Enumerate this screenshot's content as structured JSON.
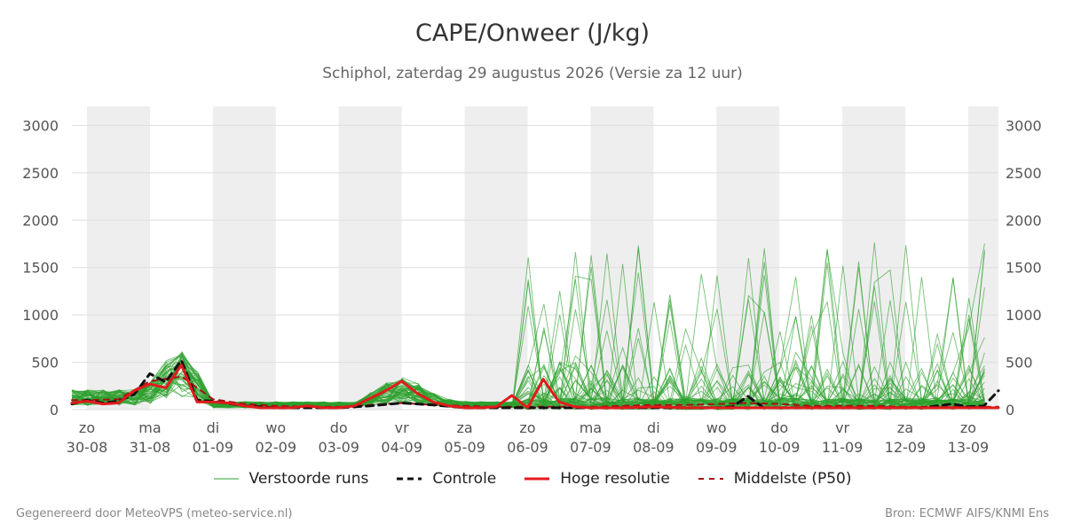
{
  "header": {
    "title": "CAPE/Onweer (J/kg)",
    "subtitle": "Schiphol, zaterdag 29 augustus 2026 (Versie za 12 uur)"
  },
  "footer": {
    "left": "Gegenereerd door MeteoVPS (meteo-service.nl)",
    "right": "Bron: ECMWF AIFS/KNMI Ens"
  },
  "colors": {
    "members": "#2ca02c",
    "control": "#111111",
    "highres": "#e31a1c",
    "median": "#a50f15",
    "weekend_band": "#eeeeee",
    "grid": "#dddddd"
  },
  "legend": [
    {
      "label": "Verstoorde runs",
      "style": "members"
    },
    {
      "label": "Controle",
      "style": "control"
    },
    {
      "label": "Hoge resolutie",
      "style": "highres"
    },
    {
      "label": "Middelste (P50)",
      "style": "median"
    }
  ],
  "chart_data": {
    "type": "line",
    "title": "CAPE/Onweer (J/kg)",
    "ylim": [
      0,
      3200
    ],
    "xlim_days": [
      -0.24,
      14.48
    ],
    "y_ticks": [
      0,
      500,
      1000,
      1500,
      2000,
      2500,
      3000
    ],
    "y_axes": [
      "left",
      "right"
    ],
    "grid": true,
    "legend_position": "bottom",
    "x_ticks": [
      {
        "day": 0,
        "weekday": "zo",
        "date": "30-08"
      },
      {
        "day": 1,
        "weekday": "ma",
        "date": "31-08"
      },
      {
        "day": 2,
        "weekday": "di",
        "date": "01-09"
      },
      {
        "day": 3,
        "weekday": "wo",
        "date": "02-09"
      },
      {
        "day": 4,
        "weekday": "do",
        "date": "03-09"
      },
      {
        "day": 5,
        "weekday": "vr",
        "date": "04-09"
      },
      {
        "day": 6,
        "weekday": "za",
        "date": "05-09"
      },
      {
        "day": 7,
        "weekday": "zo",
        "date": "06-09"
      },
      {
        "day": 8,
        "weekday": "ma",
        "date": "07-09"
      },
      {
        "day": 9,
        "weekday": "di",
        "date": "08-09"
      },
      {
        "day": 10,
        "weekday": "wo",
        "date": "09-09"
      },
      {
        "day": 11,
        "weekday": "do",
        "date": "10-09"
      },
      {
        "day": 12,
        "weekday": "vr",
        "date": "11-09"
      },
      {
        "day": 13,
        "weekday": "za",
        "date": "12-09"
      },
      {
        "day": 14,
        "weekday": "zo",
        "date": "13-09"
      }
    ],
    "shaded_bands_days": [
      [
        0,
        1
      ],
      [
        2,
        3
      ],
      [
        4,
        5
      ],
      [
        6,
        7
      ],
      [
        8,
        9
      ],
      [
        10,
        11
      ],
      [
        12,
        13
      ],
      [
        14,
        15
      ]
    ],
    "series": [
      {
        "name": "Hoge resolutie",
        "style": "highres",
        "x": [
          -0.24,
          -0.1,
          0,
          0.25,
          0.5,
          0.75,
          1,
          1.25,
          1.5,
          1.75,
          2,
          2.25,
          2.5,
          2.75,
          3,
          3.25,
          3.5,
          3.75,
          4,
          4.25,
          4.5,
          4.75,
          5,
          5.25,
          5.5,
          5.75,
          6,
          6.25,
          6.5,
          6.75,
          7,
          7.25,
          7.5,
          7.75,
          8,
          8.5,
          9,
          9.5,
          10,
          10.5,
          11,
          11.5,
          12,
          12.5,
          13,
          13.5,
          14,
          14.48
        ],
        "y": [
          70,
          80,
          90,
          60,
          70,
          200,
          270,
          230,
          470,
          80,
          80,
          70,
          40,
          20,
          20,
          20,
          40,
          20,
          20,
          40,
          120,
          200,
          300,
          170,
          80,
          40,
          20,
          20,
          30,
          150,
          20,
          320,
          80,
          30,
          20,
          20,
          30,
          20,
          20,
          20,
          20,
          20,
          20,
          20,
          20,
          20,
          20,
          20
        ]
      },
      {
        "name": "Controle",
        "style": "control",
        "x": [
          -0.24,
          0,
          0.25,
          0.5,
          0.75,
          1,
          1.25,
          1.5,
          1.75,
          2,
          2.5,
          3,
          3.5,
          4,
          4.5,
          5,
          5.5,
          6,
          6.5,
          7,
          7.5,
          8,
          8.5,
          9,
          9.5,
          10,
          10.25,
          10.5,
          10.75,
          11,
          11.5,
          12,
          12.5,
          13,
          13.25,
          13.5,
          13.75,
          14,
          14.25,
          14.48
        ],
        "y": [
          60,
          100,
          70,
          90,
          160,
          380,
          290,
          520,
          100,
          90,
          40,
          20,
          20,
          20,
          40,
          70,
          50,
          20,
          20,
          20,
          20,
          20,
          20,
          20,
          20,
          20,
          30,
          140,
          20,
          20,
          20,
          20,
          20,
          20,
          20,
          40,
          60,
          30,
          40,
          200
        ]
      },
      {
        "name": "Middelste (P50)",
        "style": "median",
        "x": [
          -0.24,
          0,
          0.5,
          1,
          1.5,
          2,
          2.5,
          3,
          3.5,
          4,
          4.5,
          5,
          5.5,
          6,
          6.5,
          7,
          7.5,
          8,
          8.5,
          9,
          9.5,
          10,
          10.5,
          11,
          11.5,
          12,
          12.5,
          13,
          13.5,
          14,
          14.48
        ],
        "y": [
          100,
          100,
          110,
          300,
          350,
          110,
          60,
          40,
          30,
          30,
          50,
          70,
          50,
          40,
          30,
          30,
          30,
          30,
          40,
          50,
          50,
          60,
          70,
          60,
          40,
          40,
          40,
          30,
          30,
          30,
          30
        ]
      }
    ]
  }
}
